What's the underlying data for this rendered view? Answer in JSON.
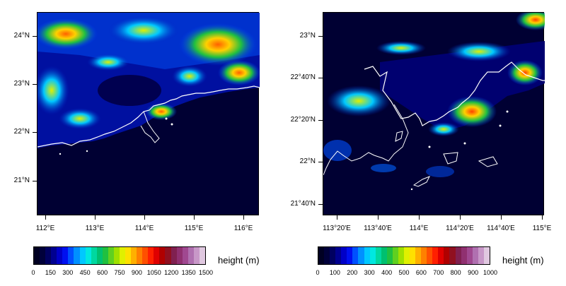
{
  "colors": {
    "ocean": "#000033",
    "coastline": "#ffffff",
    "colormap": [
      "#000022",
      "#00003a",
      "#000060",
      "#000090",
      "#0000c8",
      "#0010f0",
      "#0050ff",
      "#0090ff",
      "#00c8ff",
      "#00e8e0",
      "#00d8a0",
      "#00c070",
      "#20c040",
      "#60d020",
      "#a0e000",
      "#e0f000",
      "#ffe000",
      "#ffb000",
      "#ff8000",
      "#ff5000",
      "#ff2000",
      "#e00000",
      "#b00000",
      "#901020",
      "#802050",
      "#903070",
      "#a04890",
      "#b070b0",
      "#c898c8",
      "#e0c8e0"
    ]
  },
  "maps": [
    {
      "id": "left",
      "y_ticks": [
        "24°N",
        "23°N",
        "22°N",
        "21°N"
      ],
      "x_ticks": [
        "112°E",
        "113°E",
        "114°E",
        "115°E",
        "116°E"
      ],
      "colorbar": {
        "label": "height (m)",
        "ticks": [
          "0",
          "150",
          "300",
          "450",
          "600",
          "750",
          "900",
          "1050",
          "1200",
          "1350",
          "1500"
        ]
      }
    },
    {
      "id": "right",
      "y_ticks": [
        "23°N",
        "22°40'N",
        "22°20'N",
        "22°N",
        "21°40'N"
      ],
      "x_ticks": [
        "113°20'E",
        "113°40'E",
        "114°E",
        "114°20'E",
        "114°40'E",
        "115°E"
      ],
      "colorbar": {
        "label": "height (m)",
        "ticks": [
          "0",
          "100",
          "200",
          "300",
          "400",
          "500",
          "600",
          "700",
          "800",
          "900",
          "1000"
        ]
      }
    }
  ]
}
